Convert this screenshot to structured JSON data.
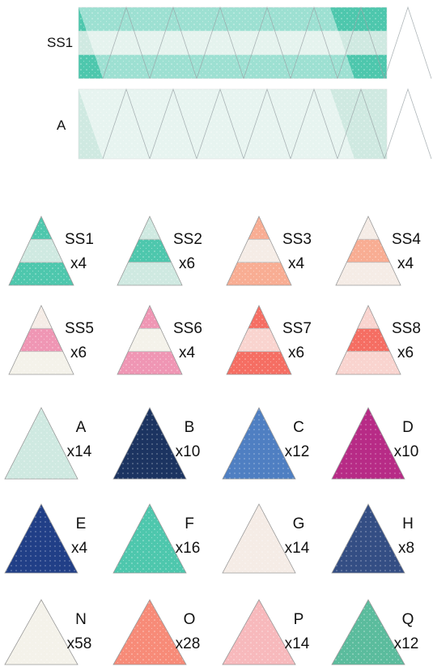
{
  "strips": [
    {
      "label": "SS1",
      "bands": [
        "teal",
        "mint",
        "teal"
      ]
    },
    {
      "label": "A",
      "bands": [
        "mint"
      ]
    }
  ],
  "pieces": [
    {
      "label": "SS1",
      "count": "x4",
      "bands": [
        "teal",
        "mint",
        "teal"
      ]
    },
    {
      "label": "SS2",
      "count": "x6",
      "bands": [
        "mint",
        "teal",
        "mint"
      ]
    },
    {
      "label": "SS3",
      "count": "x4",
      "bands": [
        "peach",
        "cream",
        "peach"
      ]
    },
    {
      "label": "SS4",
      "count": "x4",
      "bands": [
        "cream",
        "peach",
        "cream"
      ]
    },
    {
      "label": "SS5",
      "count": "x6",
      "bands": [
        "cream",
        "pink",
        "ivory"
      ]
    },
    {
      "label": "SS6",
      "count": "x4",
      "bands": [
        "pink",
        "ivory",
        "pink"
      ]
    },
    {
      "label": "SS7",
      "count": "x6",
      "bands": [
        "coral",
        "blush",
        "coral"
      ]
    },
    {
      "label": "SS8",
      "count": "x6",
      "bands": [
        "blush",
        "coral",
        "blush"
      ]
    },
    {
      "label": "A",
      "count": "x14",
      "bands": [
        "mint"
      ]
    },
    {
      "label": "B",
      "count": "x10",
      "bands": [
        "navy"
      ]
    },
    {
      "label": "C",
      "count": "x12",
      "bands": [
        "blue"
      ]
    },
    {
      "label": "D",
      "count": "x10",
      "bands": [
        "magenta"
      ]
    },
    {
      "label": "E",
      "count": "x4",
      "bands": [
        "indigo"
      ]
    },
    {
      "label": "F",
      "count": "x16",
      "bands": [
        "teal"
      ]
    },
    {
      "label": "G",
      "count": "x14",
      "bands": [
        "cream"
      ]
    },
    {
      "label": "H",
      "count": "x8",
      "bands": [
        "multi"
      ]
    },
    {
      "label": "N",
      "count": "x58",
      "bands": [
        "ivory"
      ]
    },
    {
      "label": "O",
      "count": "x28",
      "bands": [
        "salmon"
      ]
    },
    {
      "label": "P",
      "count": "x14",
      "bands": [
        "rose"
      ]
    },
    {
      "label": "Q",
      "count": "x12",
      "bands": [
        "jade"
      ]
    }
  ],
  "colors": {
    "teal": "#4ec7ad",
    "mint": "#cfe9e1",
    "peach": "#f8ad93",
    "cream": "#f5ece6",
    "pink": "#ef96b4",
    "ivory": "#f4f2ea",
    "coral": "#f56e63",
    "blush": "#f9d4cf",
    "navy": "#1c3461",
    "blue": "#4f7fc2",
    "magenta": "#b72b86",
    "indigo": "#213f87",
    "multi": "#344e84",
    "salmon": "#f78b78",
    "rose": "#f7b9bc",
    "jade": "#5bbc9d"
  }
}
